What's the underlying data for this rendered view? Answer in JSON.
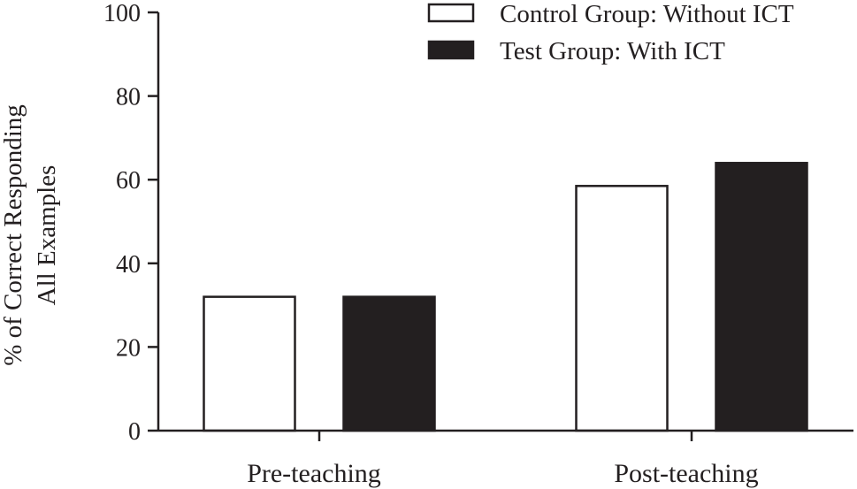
{
  "chart_data": {
    "type": "bar",
    "categories": [
      "Pre-teaching",
      "Post-teaching"
    ],
    "series": [
      {
        "name": "Control Group: Without ICT",
        "values": [
          32,
          58.5
        ],
        "color": "#ffffff"
      },
      {
        "name": "Test Group: With ICT",
        "values": [
          32,
          64
        ],
        "color": "#231f20"
      }
    ],
    "ylabel": [
      "% of Correct Responding",
      "All Examples"
    ],
    "ylim": [
      0,
      100
    ],
    "yticks": [
      0,
      20,
      40,
      60,
      80,
      100
    ],
    "ytick_labels": [
      "0",
      "20",
      "40",
      "60",
      "80",
      "100"
    ],
    "legend_position": "top-right",
    "grid": false,
    "colors": {
      "ink": "#231f20",
      "background": "#ffffff"
    }
  }
}
